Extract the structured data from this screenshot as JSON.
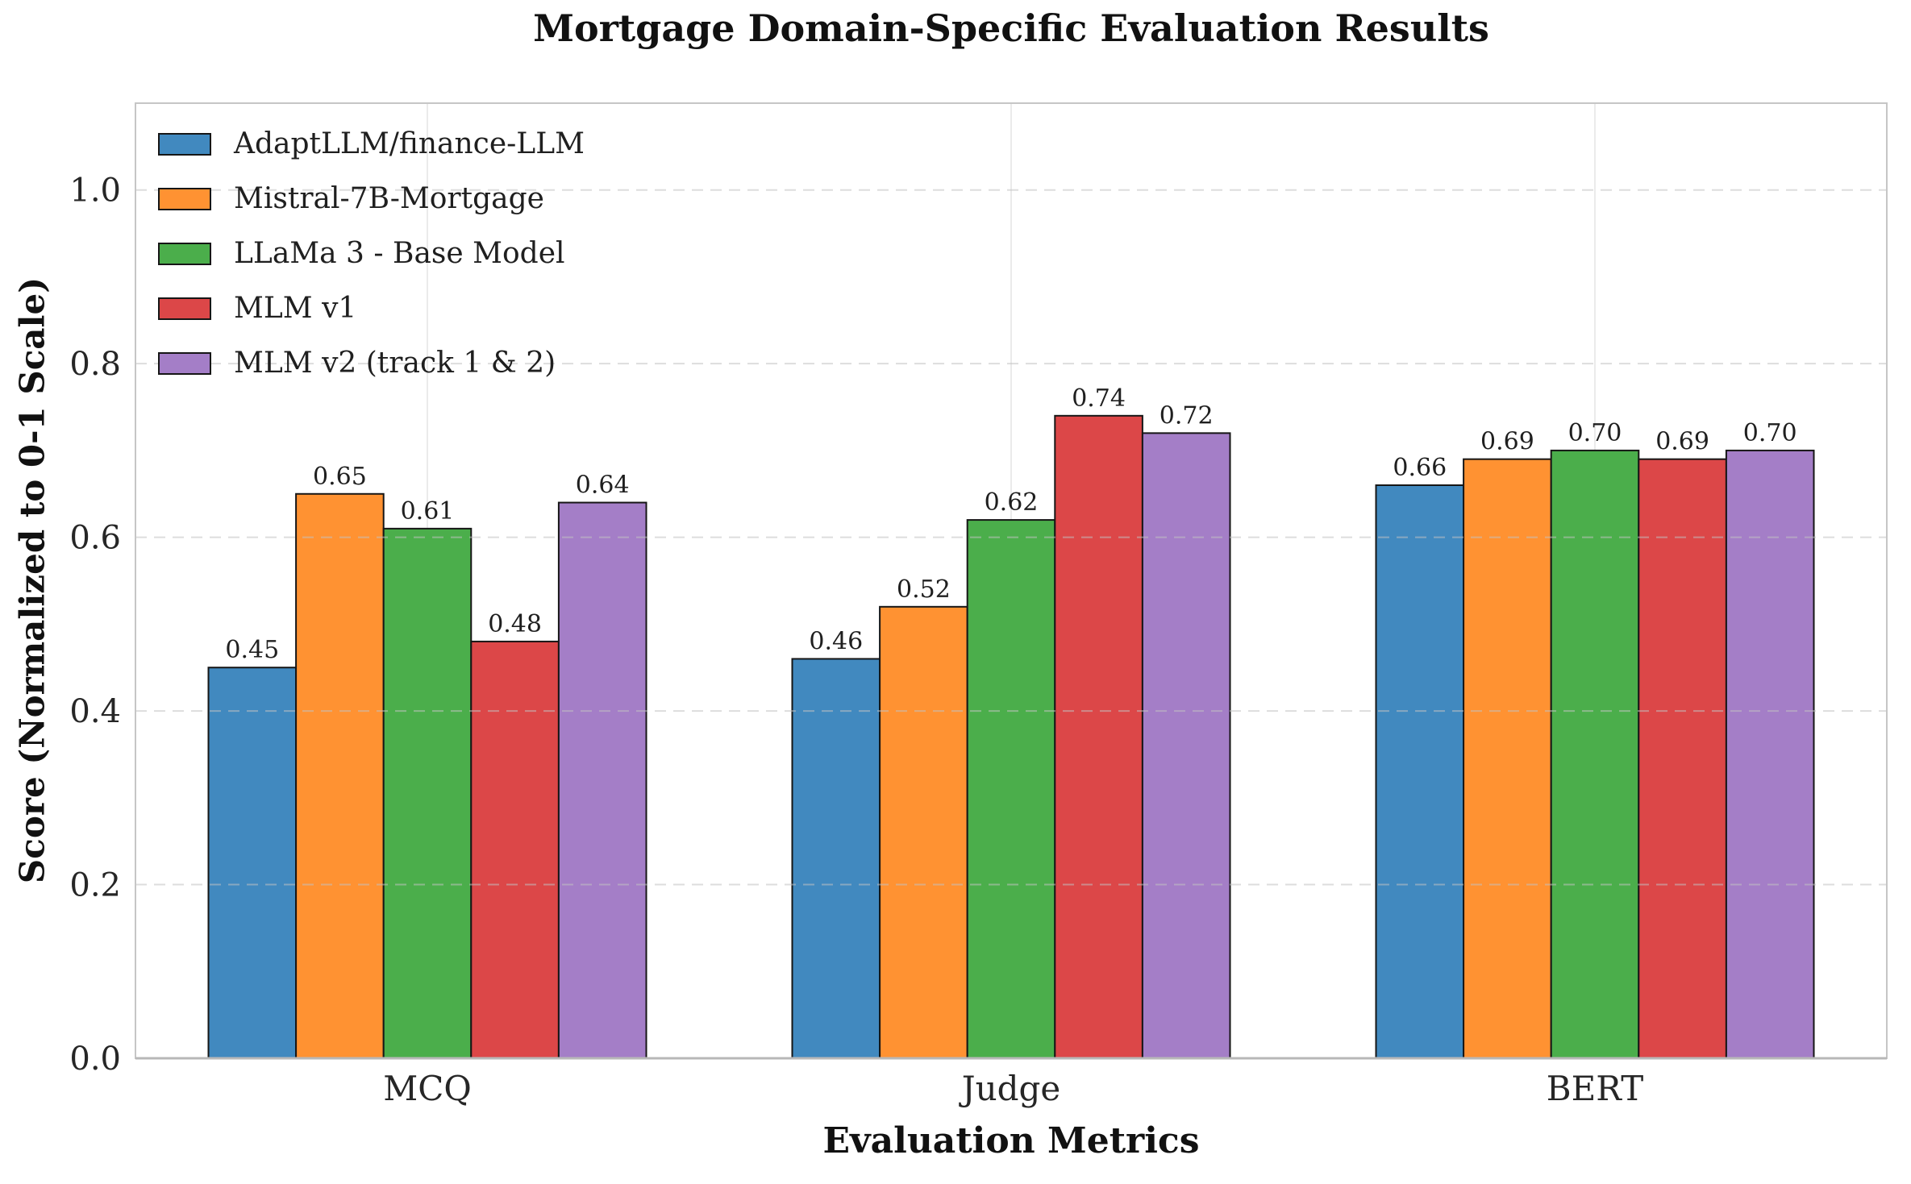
{
  "chart": {
    "title": "Mortgage Domain-Specific Evaluation Results",
    "xlabel": "Evaluation Metrics",
    "ylabel": "Score (Normalized to 0-1 Scale)"
  },
  "chart_data": {
    "type": "bar",
    "title": "Mortgage Domain-Specific Evaluation Results",
    "xlabel": "Evaluation Metrics",
    "ylabel": "Score (Normalized to 0-1 Scale)",
    "categories": [
      "MCQ",
      "Judge",
      "BERT"
    ],
    "series": [
      {
        "name": "AdaptLLM/finance-LLM",
        "color": "#4189BF",
        "values": [
          0.45,
          0.46,
          0.66
        ]
      },
      {
        "name": "Mistral-7B-Mortgage",
        "color": "#FF9232",
        "values": [
          0.65,
          0.52,
          0.69
        ]
      },
      {
        "name": "LLaMa 3 - Base Model",
        "color": "#4BAE4B",
        "values": [
          0.61,
          0.62,
          0.7
        ]
      },
      {
        "name": "MLM v1",
        "color": "#DC4748",
        "values": [
          0.48,
          0.74,
          0.69
        ]
      },
      {
        "name": "MLM v2 (track 1 & 2)",
        "color": "#A47EC7",
        "values": [
          0.64,
          0.72,
          0.7
        ]
      }
    ],
    "ytick_labels": [
      "0.0",
      "0.2",
      "0.4",
      "0.6",
      "0.8",
      "1.0"
    ],
    "ytick_values": [
      0.0,
      0.2,
      0.4,
      0.6,
      0.8,
      1.0
    ],
    "ylim": [
      0,
      1.1
    ],
    "value_label_decimals": 2,
    "grid": "horizontal-dashed-over-bars, faint-vertical-at-category-centers",
    "legend_position": "upper-left",
    "bar_edge_color": "#161616",
    "spine_color": "#c6c6c6",
    "gridline_color": "#c2c2c2"
  }
}
